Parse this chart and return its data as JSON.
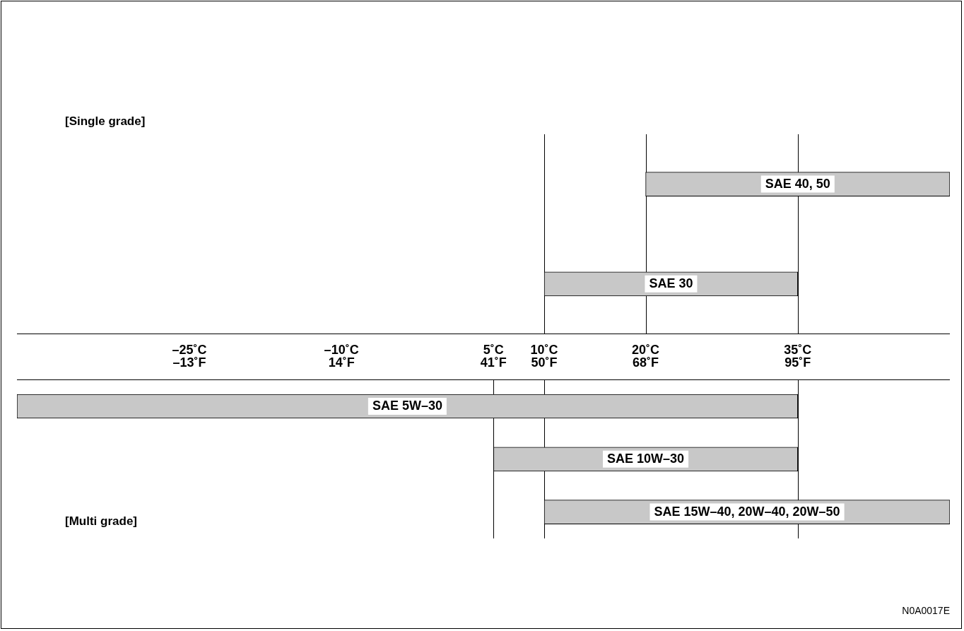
{
  "chart_data": [
    {
      "type": "bar",
      "orientation": "horizontal",
      "title": "[Single grade]",
      "categories": [
        "SAE 40, 50",
        "SAE 30"
      ],
      "base": [
        20,
        10
      ],
      "values": [
        30,
        25
      ],
      "color": "#c8c8c8",
      "xlim": [
        -42,
        50
      ],
      "xticks": [
        {
          "value": -25,
          "label": "–25˚C"
        },
        {
          "value": -10,
          "label": "–10˚C"
        },
        {
          "value": 5,
          "label": "5˚C"
        },
        {
          "value": 10,
          "label": "10˚C"
        },
        {
          "value": 20,
          "label": "20˚C"
        },
        {
          "value": 35,
          "label": "35˚C"
        }
      ],
      "ref_lines": [
        {
          "axis": "x",
          "value": 20
        },
        {
          "axis": "x",
          "value": 10
        },
        {
          "axis": "x",
          "value": 35
        }
      ],
      "grid": false,
      "legend": false
    },
    {
      "type": "bar",
      "orientation": "horizontal",
      "title": "[Multi grade]",
      "categories": [
        "SAE 5W–30",
        "SAE 10W–30",
        "SAE 15W–40, 20W–40, 20W–50"
      ],
      "base": [
        -42,
        5,
        10
      ],
      "values": [
        77,
        30,
        40
      ],
      "color": "#c8c8c8",
      "xlim": [
        -42,
        50
      ],
      "x2lim": [
        -43.6,
        122
      ],
      "x2ticks": [
        {
          "value": -13,
          "label": "–13˚F"
        },
        {
          "value": 14,
          "label": "14˚F"
        },
        {
          "value": 41,
          "label": "41˚F"
        },
        {
          "value": 50,
          "label": "50˚F"
        },
        {
          "value": 68,
          "label": "68˚F"
        },
        {
          "value": 95,
          "label": "95˚F"
        }
      ],
      "ref_lines": [
        {
          "axis": "x",
          "value": 5
        },
        {
          "axis": "x",
          "value": 10
        },
        {
          "axis": "x",
          "value": 35
        }
      ],
      "annotations": [
        "N0A0017E"
      ],
      "grid": false,
      "legend": false
    }
  ]
}
